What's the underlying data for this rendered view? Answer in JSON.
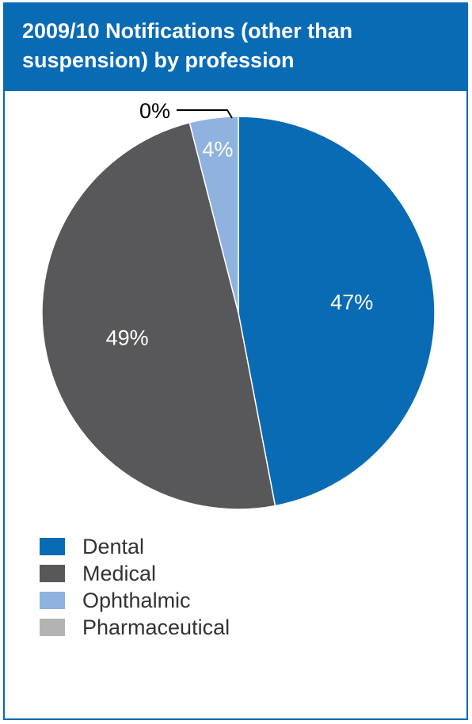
{
  "header": {
    "title_line1": "2009/10 Notifications (other than",
    "title_line2": "suspension) by profession"
  },
  "chart_data": {
    "type": "pie",
    "title": "2009/10 Notifications (other than suspension) by profession",
    "slices": [
      {
        "name": "Dental",
        "value": 47,
        "label": "47%",
        "color": "#0a6bb5",
        "label_color": "#ffffff"
      },
      {
        "name": "Medical",
        "value": 49,
        "label": "49%",
        "color": "#58585a",
        "label_color": "#ffffff"
      },
      {
        "name": "Ophthalmic",
        "value": 4,
        "label": "4%",
        "color": "#8fb3de",
        "label_color": "#ffffff"
      },
      {
        "name": "Pharmaceutical",
        "value": 0,
        "label": "0%",
        "color": "#b3b3b3",
        "label_color": "#000000"
      }
    ],
    "legend_position": "bottom-left"
  },
  "legend": {
    "items": [
      {
        "label": "Dental",
        "color": "#0a6bb5"
      },
      {
        "label": "Medical",
        "color": "#58585a"
      },
      {
        "label": "Ophthalmic",
        "color": "#8fb3de"
      },
      {
        "label": "Pharmaceutical",
        "color": "#b3b3b3"
      }
    ]
  }
}
